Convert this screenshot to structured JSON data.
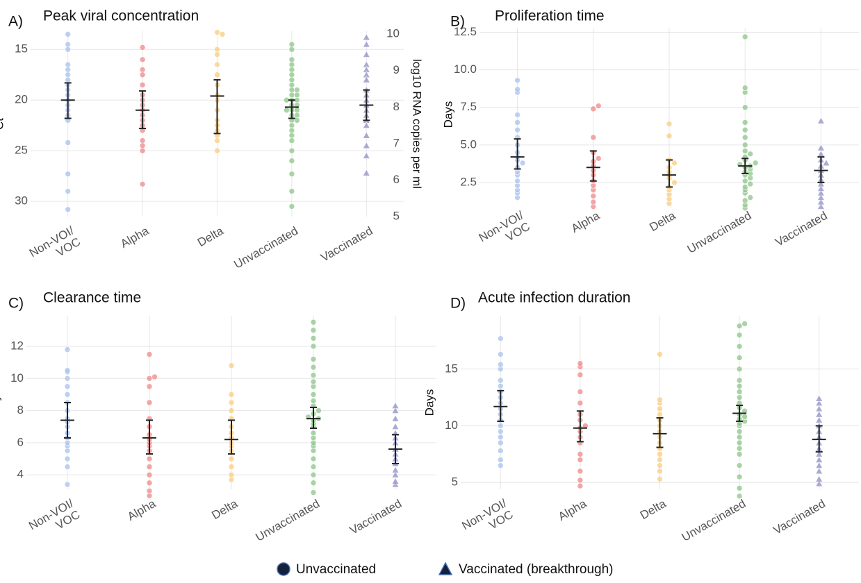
{
  "chart_data": [
    {
      "type": "beeswarm",
      "panel": "A)",
      "title": "Peak viral concentration",
      "ylabel": "Ct",
      "ylim": [
        13.2,
        31.5
      ],
      "y_inverted": true,
      "yticks": [
        15,
        20,
        25,
        30
      ],
      "y2label": "log10 RNA copies per ml",
      "y2lim": [
        5.0,
        10.08
      ],
      "y2ticks": [
        5,
        6,
        7,
        8,
        9,
        10
      ],
      "grid": true,
      "categories": [
        "Non-VOI/ VOC",
        "Alpha",
        "Delta",
        "Unvaccinated",
        "Vaccinated"
      ],
      "groups": [
        {
          "color": "#a9c1ee",
          "marker": "circle",
          "values": [
            13.5,
            14.5,
            15,
            16.5,
            17,
            17.5,
            18,
            18.5,
            19,
            19.5,
            20,
            20.5,
            21,
            21.5,
            22,
            24.2,
            27.3,
            29,
            30.8
          ],
          "mean": 20.0,
          "ci": [
            18.3,
            21.8
          ]
        },
        {
          "color": "#ee8a8a",
          "marker": "circle",
          "values": [
            14.8,
            16,
            17,
            17.5,
            18.5,
            19.5,
            20,
            20.5,
            21,
            21.5,
            22,
            22.5,
            23,
            24,
            24.5,
            25,
            28.3
          ],
          "mean": 21.0,
          "ci": [
            19.1,
            22.8
          ]
        },
        {
          "color": "#f9cc7f",
          "marker": "circle",
          "values": [
            13.3,
            13.5,
            15,
            15.5,
            16.5,
            17.5,
            18.5,
            19.5,
            20,
            21,
            22,
            22.5,
            23,
            23.5,
            24,
            25
          ],
          "mean": 19.6,
          "ci": [
            18.0,
            23.3
          ]
        },
        {
          "color": "#8dc58a",
          "marker": "circle",
          "values": [
            14.5,
            15,
            16,
            16.5,
            17,
            17.5,
            18,
            18.5,
            19,
            19,
            19.5,
            19.5,
            20,
            20,
            20,
            20.5,
            20.5,
            21,
            21,
            21,
            21.5,
            21.5,
            22,
            22,
            22.5,
            23,
            23.5,
            24,
            25,
            26,
            27.3,
            29,
            30.5
          ],
          "mean": 20.7,
          "ci": [
            20.0,
            21.8
          ]
        },
        {
          "color": "#8f8fc6",
          "marker": "triangle",
          "values": [
            13.8,
            14.5,
            15.5,
            16.5,
            17,
            17.5,
            18,
            19,
            19.5,
            20,
            20.5,
            21,
            21.5,
            22,
            22.5,
            23.5,
            24.5,
            25.5,
            27.2
          ],
          "mean": 20.5,
          "ci": [
            19.0,
            22.0
          ]
        }
      ]
    },
    {
      "type": "beeswarm",
      "panel": "B)",
      "title": "Proliferation time",
      "ylabel": "Days",
      "ylim": [
        1.25,
        12.8
      ],
      "yticks": [
        {
          "value": 2.5,
          "label": "2.5"
        },
        {
          "value": 5,
          "label": "5.0"
        },
        {
          "value": 7.5,
          "label": "7.5"
        },
        {
          "value": 10,
          "label": "10.0"
        },
        {
          "value": 12.5,
          "label": "12.5"
        }
      ],
      "grid": true,
      "categories": [
        "Non-VOI/ VOC",
        "Alpha",
        "Delta",
        "Unvaccinated",
        "Vaccinated"
      ],
      "groups": [
        {
          "color": "#a9c1ee",
          "marker": "circle",
          "values": [
            1.5,
            1.8,
            2,
            2.3,
            2.6,
            3,
            3.2,
            3.5,
            3.8,
            4,
            4.2,
            4.5,
            5,
            5.5,
            6,
            6.5,
            7,
            8.5,
            8.7,
            9.3
          ],
          "mean": 4.2,
          "ci": [
            3.4,
            5.4
          ]
        },
        {
          "color": "#ee8a8a",
          "marker": "circle",
          "values": [
            0.9,
            1.2,
            1.6,
            2,
            2.3,
            2.6,
            3,
            3.3,
            3.6,
            3.9,
            4.1,
            4.5,
            5.5,
            7.4,
            7.6
          ],
          "mean": 3.5,
          "ci": [
            2.6,
            4.6
          ]
        },
        {
          "color": "#f9cc7f",
          "marker": "circle",
          "values": [
            1.1,
            1.4,
            1.7,
            2,
            2.2,
            2.5,
            2.8,
            3,
            3.2,
            3.5,
            3.8,
            4,
            5.6,
            6.4
          ],
          "mean": 3.0,
          "ci": [
            2.2,
            4.0
          ]
        },
        {
          "color": "#8dc58a",
          "marker": "circle",
          "values": [
            0.8,
            1,
            1.3,
            1.5,
            1.8,
            2,
            2.2,
            2.4,
            2.6,
            2.8,
            3,
            3.1,
            3.2,
            3.4,
            3.5,
            3.6,
            3.7,
            3.8,
            4,
            4.2,
            4.4,
            4.6,
            5,
            5.5,
            6,
            6.5,
            7.5,
            8.5,
            8.8,
            12.2
          ],
          "mean": 3.6,
          "ci": [
            3.1,
            4.1
          ]
        },
        {
          "color": "#8f8fc6",
          "marker": "triangle",
          "values": [
            0.9,
            1.2,
            1.5,
            1.8,
            2.1,
            2.4,
            2.7,
            3,
            3.3,
            3.6,
            3.8,
            4,
            4.4,
            4.8,
            6.6
          ],
          "mean": 3.3,
          "ci": [
            2.5,
            4.2
          ]
        }
      ]
    },
    {
      "type": "beeswarm",
      "panel": "C)",
      "title": "Clearance time",
      "ylabel": "Days",
      "ylim": [
        3.1,
        13.9
      ],
      "yticks": [
        4,
        6,
        8,
        10,
        12
      ],
      "grid": true,
      "categories": [
        "Non-VOI/ VOC",
        "Alpha",
        "Delta",
        "Unvaccinated",
        "Vaccinated"
      ],
      "groups": [
        {
          "color": "#a9c1ee",
          "marker": "circle",
          "values": [
            3.4,
            4.5,
            5,
            5.5,
            5.8,
            6,
            6.3,
            6.6,
            7,
            7.3,
            7.5,
            8,
            8.5,
            9,
            9.5,
            10,
            10.4,
            10.5,
            11.8
          ],
          "mean": 7.4,
          "ci": [
            6.3,
            8.5
          ]
        },
        {
          "color": "#ee8a8a",
          "marker": "circle",
          "values": [
            2.7,
            3,
            3.5,
            4,
            4.5,
            5,
            5.5,
            5.8,
            6,
            6.2,
            6.5,
            7,
            7.5,
            8.5,
            9.5,
            10,
            10.1,
            11.5
          ],
          "mean": 6.3,
          "ci": [
            5.3,
            7.4
          ]
        },
        {
          "color": "#f9cc7f",
          "marker": "circle",
          "values": [
            3.7,
            4,
            4.5,
            5,
            5.5,
            5.8,
            6,
            6.3,
            6.6,
            7,
            7.5,
            8,
            8.5,
            9,
            10.8
          ],
          "mean": 6.2,
          "ci": [
            5.3,
            7.4
          ]
        },
        {
          "color": "#8dc58a",
          "marker": "circle",
          "values": [
            2.9,
            3.5,
            4,
            4.5,
            5,
            5.5,
            5.8,
            6,
            6.3,
            6.6,
            7,
            7.2,
            7.4,
            7.5,
            7.6,
            7.8,
            8,
            8.3,
            8.6,
            9,
            9.5,
            9.8,
            10.2,
            10.7,
            11.2,
            12,
            12.5,
            13,
            13.5
          ],
          "mean": 7.5,
          "ci": [
            6.9,
            8.2
          ]
        },
        {
          "color": "#8f8fc6",
          "marker": "triangle",
          "values": [
            3.4,
            3.6,
            4,
            4.3,
            4.7,
            5,
            5.3,
            5.6,
            6,
            6.3,
            6.6,
            7,
            7.5,
            8,
            8.3
          ],
          "mean": 5.6,
          "ci": [
            4.7,
            6.5
          ]
        }
      ]
    },
    {
      "type": "beeswarm",
      "panel": "D)",
      "title": "Acute infection duration",
      "ylabel": "Days",
      "ylim": [
        4.4,
        19.7
      ],
      "yticks": [
        5,
        10,
        15
      ],
      "grid": true,
      "categories": [
        "Non-VOI/ VOC",
        "Alpha",
        "Delta",
        "Unvaccinated",
        "Vaccinated"
      ],
      "groups": [
        {
          "color": "#a9c1ee",
          "marker": "circle",
          "values": [
            6.5,
            7,
            7.8,
            8.5,
            9,
            9.5,
            10,
            10.5,
            11,
            11.5,
            12,
            12.5,
            13,
            13.5,
            14,
            15,
            15.4,
            16.3,
            17.7
          ],
          "mean": 11.7,
          "ci": [
            10.4,
            13.1
          ]
        },
        {
          "color": "#ee8a8a",
          "marker": "circle",
          "values": [
            4.7,
            5.2,
            6,
            7,
            7.5,
            8.5,
            9,
            9.5,
            9.8,
            10,
            10.5,
            11,
            12,
            13,
            14.5,
            15.2,
            15.5
          ],
          "mean": 9.8,
          "ci": [
            8.6,
            11.3
          ]
        },
        {
          "color": "#f9cc7f",
          "marker": "circle",
          "values": [
            5.3,
            6,
            6.5,
            7,
            7.5,
            8,
            8.5,
            9,
            9.5,
            10,
            10.5,
            11,
            11.5,
            12,
            12.3,
            16.3
          ],
          "mean": 9.3,
          "ci": [
            8.1,
            10.7
          ]
        },
        {
          "color": "#8dc58a",
          "marker": "circle",
          "values": [
            3.8,
            4.5,
            5.5,
            6.5,
            7.5,
            8,
            8.5,
            9,
            9.5,
            10,
            10.2,
            10.4,
            10.6,
            10.8,
            11,
            11.3,
            11.6,
            12,
            12.5,
            13,
            13.5,
            14,
            15,
            16,
            17,
            18,
            18.8,
            19
          ],
          "mean": 11.1,
          "ci": [
            10.4,
            11.8
          ]
        },
        {
          "color": "#8f8fc6",
          "marker": "triangle",
          "values": [
            4.9,
            5.3,
            6,
            6.5,
            7,
            7.5,
            8,
            8.5,
            9,
            9.5,
            10,
            10.5,
            11,
            11.5,
            12,
            12.4
          ],
          "mean": 8.8,
          "ci": [
            7.7,
            10.0
          ]
        }
      ]
    }
  ],
  "legend": [
    {
      "label": "Unvaccinated",
      "marker": "circle"
    },
    {
      "label": "Vaccinated (breakthrough)",
      "marker": "triangle"
    }
  ],
  "legend_color": "#14213d"
}
